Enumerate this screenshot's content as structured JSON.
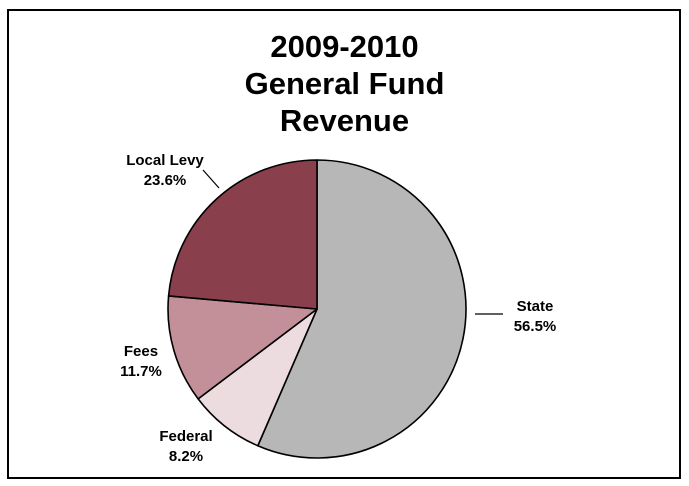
{
  "chart_data": {
    "type": "pie",
    "title": [
      "2009-2010",
      "General Fund",
      "Revenue"
    ],
    "slices": [
      {
        "label": "State",
        "value": 56.5,
        "value_label": "56.5%",
        "color": "#b7b7b7"
      },
      {
        "label": "Federal",
        "value": 8.2,
        "value_label": "8.2%",
        "color": "#ecdcdf"
      },
      {
        "label": "Fees",
        "value": 11.7,
        "value_label": "11.7%",
        "color": "#c3909a"
      },
      {
        "label": "Local Levy",
        "value": 23.6,
        "value_label": "23.6%",
        "color": "#8a3f4c"
      }
    ],
    "start": "12 o'clock",
    "direction": "clockwise",
    "legend": "none",
    "slice_border_color": "#000000"
  }
}
